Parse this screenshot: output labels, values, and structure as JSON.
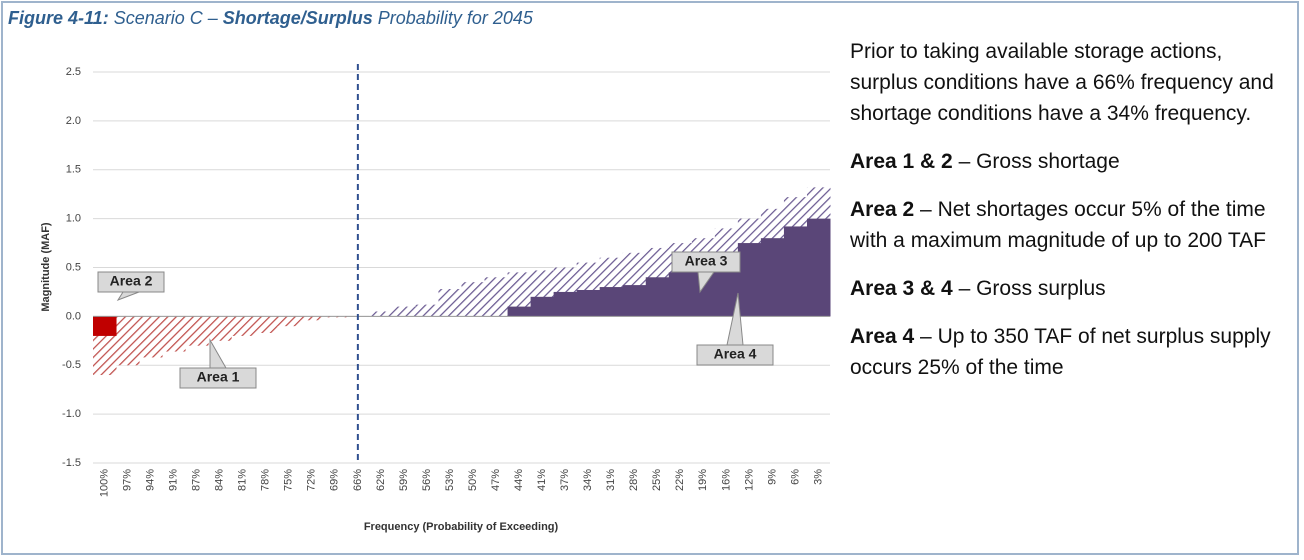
{
  "caption": {
    "label": "Figure 4-11:",
    "pre": " Scenario C – ",
    "emph": "Shortage/Surplus",
    "post": " Probability for 2045"
  },
  "chart_data": {
    "type": "area-slices",
    "y_label": "Magnitude (MAF)",
    "x_label": "Frequency (Probability of Exceeding)",
    "categories": [
      "100%",
      "97%",
      "94%",
      "91%",
      "87%",
      "84%",
      "81%",
      "78%",
      "75%",
      "72%",
      "69%",
      "66%",
      "62%",
      "59%",
      "56%",
      "53%",
      "50%",
      "47%",
      "44%",
      "41%",
      "37%",
      "34%",
      "31%",
      "28%",
      "25%",
      "22%",
      "19%",
      "16%",
      "12%",
      "9%",
      "6%",
      "3%"
    ],
    "series": [
      {
        "style": "hatched",
        "color": "#6a5a92",
        "negative_color": "#c0504d",
        "values": [
          -0.6,
          -0.5,
          -0.42,
          -0.36,
          -0.3,
          -0.25,
          -0.2,
          -0.17,
          -0.1,
          -0.04,
          -0.01,
          0.0,
          0.05,
          0.1,
          0.12,
          0.28,
          0.35,
          0.4,
          0.45,
          0.47,
          0.5,
          0.55,
          0.6,
          0.65,
          0.7,
          0.75,
          0.8,
          0.9,
          1.0,
          1.1,
          1.22,
          1.32
        ]
      },
      {
        "style": "solid",
        "color": "#5a4678",
        "negative_color": "#c00000",
        "values": [
          -0.2,
          0,
          0,
          0,
          0,
          0,
          0,
          0,
          0,
          0,
          0,
          0,
          0,
          0,
          0,
          0,
          0,
          0,
          0.1,
          0.2,
          0.25,
          0.27,
          0.3,
          0.32,
          0.4,
          0.45,
          0.55,
          0.65,
          0.75,
          0.8,
          0.92,
          1.0
        ]
      }
    ],
    "vline_at": "66%",
    "ylim": [
      -1.5,
      2.5
    ],
    "yticks": [
      -1.5,
      {
        "value": -1,
        "label": "-1.0"
      },
      -0.5,
      {
        "value": 0,
        "label": "0.0"
      },
      0.5,
      {
        "value": 1,
        "label": "1.0"
      },
      1.5,
      {
        "value": 2,
        "label": "2.0"
      },
      2.5
    ],
    "grid": true,
    "annotations": [
      "Area 2",
      "Area 1",
      "Area 3",
      "Area 4"
    ]
  },
  "paragraphs": [
    [
      {
        "text": "Prior to taking available storage actions, surplus conditions have a 66% frequency and shortage conditions have a 34% frequency."
      }
    ],
    [
      {
        "bold": "Area 1 & 2"
      },
      {
        "text": " – Gross shortage"
      }
    ],
    [
      {
        "bold": "Area 2"
      },
      {
        "text": " – Net shortages occur 5% of the time with a maximum magnitude of up to 200 TAF"
      }
    ],
    [
      {
        "bold": "Area 3 & 4"
      },
      {
        "text": " – Gross surplus"
      }
    ],
    [
      {
        "bold": "Area 4"
      },
      {
        "text": " – Up to 350 TAF of net surplus supply occurs 25% of the time"
      }
    ]
  ]
}
